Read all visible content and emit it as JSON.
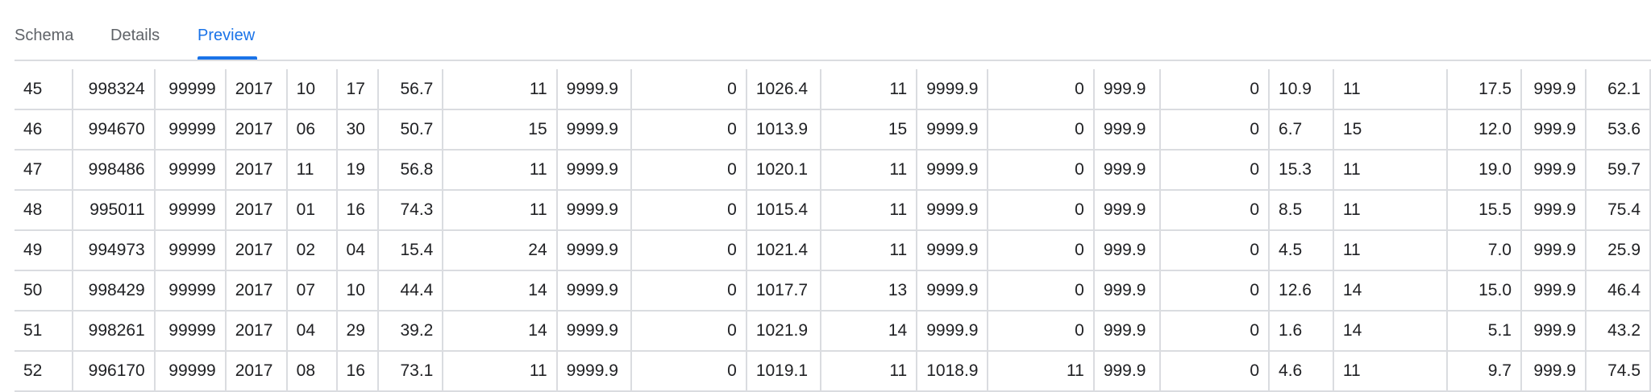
{
  "tabs": [
    {
      "label": "Schema",
      "active": false
    },
    {
      "label": "Details",
      "active": false
    },
    {
      "label": "Preview",
      "active": true
    }
  ],
  "accent_color": "#1a73e8",
  "table": {
    "rows": [
      [
        "45",
        "998324",
        "99999",
        "2017",
        "10",
        "17",
        "56.7",
        "11",
        "9999.9",
        "0",
        "1026.4",
        "11",
        "9999.9",
        "0",
        "999.9",
        "0",
        "10.9",
        "11",
        "17.5",
        "999.9",
        "62.1"
      ],
      [
        "46",
        "994670",
        "99999",
        "2017",
        "06",
        "30",
        "50.7",
        "15",
        "9999.9",
        "0",
        "1013.9",
        "15",
        "9999.9",
        "0",
        "999.9",
        "0",
        "6.7",
        "15",
        "12.0",
        "999.9",
        "53.6"
      ],
      [
        "47",
        "998486",
        "99999",
        "2017",
        "11",
        "19",
        "56.8",
        "11",
        "9999.9",
        "0",
        "1020.1",
        "11",
        "9999.9",
        "0",
        "999.9",
        "0",
        "15.3",
        "11",
        "19.0",
        "999.9",
        "59.7"
      ],
      [
        "48",
        "995011",
        "99999",
        "2017",
        "01",
        "16",
        "74.3",
        "11",
        "9999.9",
        "0",
        "1015.4",
        "11",
        "9999.9",
        "0",
        "999.9",
        "0",
        "8.5",
        "11",
        "15.5",
        "999.9",
        "75.4"
      ],
      [
        "49",
        "994973",
        "99999",
        "2017",
        "02",
        "04",
        "15.4",
        "24",
        "9999.9",
        "0",
        "1021.4",
        "11",
        "9999.9",
        "0",
        "999.9",
        "0",
        "4.5",
        "11",
        "7.0",
        "999.9",
        "25.9"
      ],
      [
        "50",
        "998429",
        "99999",
        "2017",
        "07",
        "10",
        "44.4",
        "14",
        "9999.9",
        "0",
        "1017.7",
        "13",
        "9999.9",
        "0",
        "999.9",
        "0",
        "12.6",
        "14",
        "15.0",
        "999.9",
        "46.4"
      ],
      [
        "51",
        "998261",
        "99999",
        "2017",
        "04",
        "29",
        "39.2",
        "14",
        "9999.9",
        "0",
        "1021.9",
        "14",
        "9999.9",
        "0",
        "999.9",
        "0",
        "1.6",
        "14",
        "5.1",
        "999.9",
        "43.2"
      ],
      [
        "52",
        "996170",
        "99999",
        "2017",
        "08",
        "16",
        "73.1",
        "11",
        "9999.9",
        "0",
        "1019.1",
        "11",
        "1018.9",
        "11",
        "999.9",
        "0",
        "4.6",
        "11",
        "9.7",
        "999.9",
        "74.5"
      ]
    ]
  }
}
